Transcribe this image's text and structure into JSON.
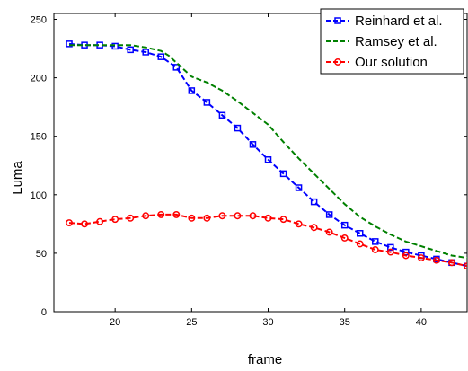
{
  "chart_data": {
    "type": "line",
    "title": "",
    "xlabel": "frame",
    "ylabel": "Luma",
    "xlim": [
      16,
      43
    ],
    "ylim": [
      0,
      255
    ],
    "xticks": [
      20,
      25,
      30,
      35,
      40
    ],
    "yticks": [
      0,
      50,
      100,
      150,
      200,
      250
    ],
    "grid": false,
    "legend_position": "top-right",
    "series": [
      {
        "name": "Reinhard et al.",
        "color": "#0000ff",
        "line_style": "dashed",
        "marker": "square",
        "x": [
          17,
          18,
          19,
          20,
          21,
          22,
          23,
          24,
          25,
          26,
          27,
          28,
          29,
          30,
          31,
          32,
          33,
          34,
          35,
          36,
          37,
          38,
          39,
          40,
          41,
          42,
          43
        ],
        "y": [
          229,
          228,
          228,
          227,
          224,
          222,
          218,
          209,
          189,
          179,
          168,
          157,
          143,
          130,
          118,
          106,
          94,
          83,
          74,
          67,
          60,
          55,
          51,
          48,
          45,
          42,
          39
        ]
      },
      {
        "name": "Ramsey et al.",
        "color": "#008000",
        "line_style": "dashed",
        "marker": "none",
        "x": [
          17,
          18,
          19,
          20,
          21,
          22,
          23,
          23.5,
          24,
          25,
          26,
          27,
          28,
          29,
          30,
          31,
          32,
          33,
          34,
          35,
          36,
          37,
          38,
          39,
          40,
          41,
          42,
          43
        ],
        "y": [
          228,
          228,
          228,
          228,
          228,
          226,
          223,
          219,
          213,
          201,
          196,
          189,
          180,
          170,
          160,
          145,
          131,
          118,
          105,
          92,
          81,
          73,
          66,
          60,
          56,
          52,
          48,
          46
        ]
      },
      {
        "name": "Our solution",
        "color": "#ff0000",
        "line_style": "dashed",
        "marker": "circle",
        "x": [
          17,
          18,
          19,
          20,
          21,
          22,
          23,
          24,
          25,
          26,
          27,
          28,
          29,
          30,
          31,
          32,
          33,
          34,
          35,
          36,
          37,
          38,
          39,
          40,
          41,
          42,
          43
        ],
        "y": [
          76,
          75,
          77,
          79,
          80,
          82,
          83,
          83,
          80,
          80,
          82,
          82,
          82,
          80,
          79,
          75,
          72,
          68,
          63,
          58,
          53,
          51,
          48,
          46,
          44,
          42,
          39
        ]
      }
    ]
  }
}
